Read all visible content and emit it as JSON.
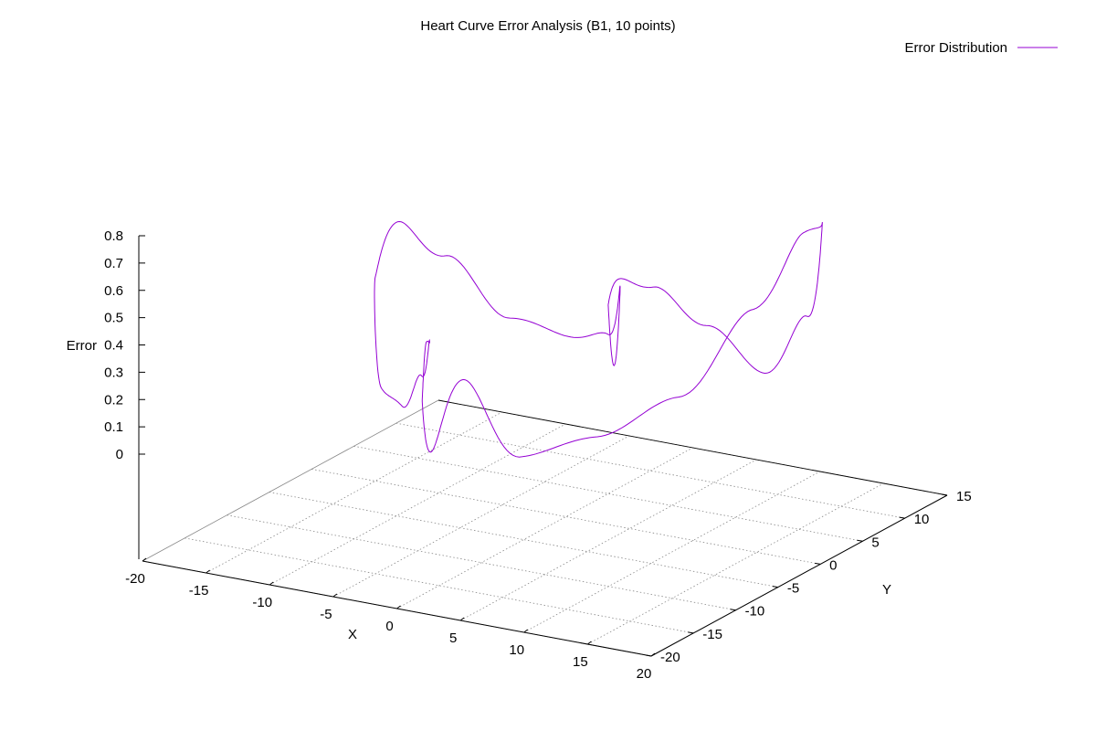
{
  "chart_data": {
    "type": "line",
    "title": "Heart Curve Error Analysis (B1, 10 points)",
    "xlabel": "X",
    "ylabel": "Y",
    "zlabel": "Error",
    "x_ticks": [
      "-20",
      "-15",
      "-10",
      "-5",
      "0",
      "5",
      "10",
      "15",
      "20"
    ],
    "y_ticks": [
      "-20",
      "-15",
      "-10",
      "-5",
      "0",
      "5",
      "10",
      "15"
    ],
    "z_ticks": [
      "0",
      "0.1",
      "0.2",
      "0.3",
      "0.4",
      "0.5",
      "0.6",
      "0.7",
      "0.8"
    ],
    "xlim": [
      -20,
      20
    ],
    "ylim": [
      -20,
      15
    ],
    "zlim": [
      0,
      0.8
    ],
    "grid": true,
    "legend_position": "top-right",
    "series": [
      {
        "name": "Error Distribution",
        "color": "#9400d3",
        "curve": "heart",
        "error_samples": [
          0.3,
          0.38,
          0.32,
          0.16,
          0.0,
          0.26,
          0.68,
          0.72,
          0.5,
          0.22,
          0.1,
          0.05,
          0.36,
          0.12,
          0.32,
          0.52,
          0.48,
          0.28,
          0.08,
          0.05,
          0.36,
          0.48,
          0.3,
          0.05,
          0.0,
          0.06,
          0.3,
          0.06
        ]
      }
    ]
  }
}
